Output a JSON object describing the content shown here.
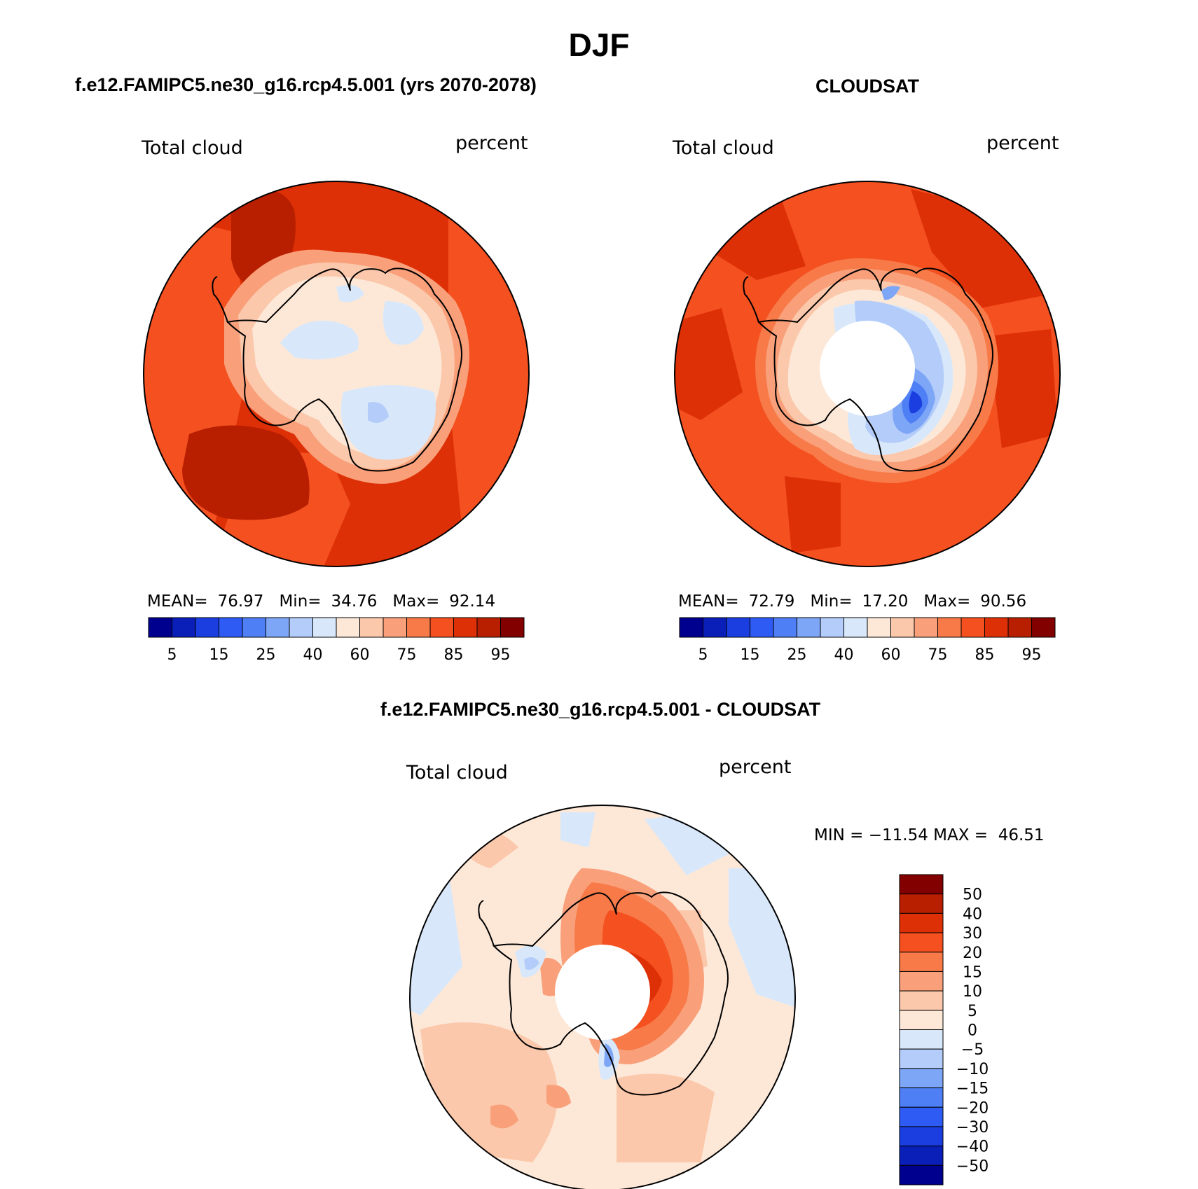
{
  "title": "DJF",
  "panels": [
    {
      "id": "model",
      "title": "f.e12.FAMIPC5.ne30_g16.rcp4.5.001 (yrs 2070-2078)",
      "variable": "Total cloud",
      "units": "percent",
      "stats": {
        "mean_label": "MEAN=",
        "mean": "76.97",
        "min_label": "Min=",
        "min": "34.76",
        "max_label": "Max=",
        "max": "92.14"
      },
      "colorbar_labels": [
        "5",
        "15",
        "25",
        "40",
        "60",
        "75",
        "85",
        "95"
      ]
    },
    {
      "id": "obs",
      "title": "CLOUDSAT",
      "variable": "Total cloud",
      "units": "percent",
      "stats": {
        "mean_label": "MEAN=",
        "mean": "72.79",
        "min_label": "Min=",
        "min": "17.20",
        "max_label": "Max=",
        "max": "90.56"
      },
      "colorbar_labels": [
        "5",
        "15",
        "25",
        "40",
        "60",
        "75",
        "85",
        "95"
      ]
    },
    {
      "id": "diff",
      "title": "f.e12.FAMIPC5.ne30_g16.rcp4.5.001 - CLOUDSAT",
      "variable": "Total cloud",
      "units": "percent",
      "stats_text": "MIN = −11.54 MAX =  46.51",
      "colorbar_labels": [
        "50",
        "40",
        "30",
        "20",
        "15",
        "10",
        "5",
        "0",
        "−5",
        "−10",
        "−15",
        "−20",
        "−30",
        "−40",
        "−50"
      ]
    }
  ],
  "colors": {
    "abs_scale": [
      "#00008f",
      "#0a1fb8",
      "#1a3ee0",
      "#2f5bf5",
      "#4f7ff4",
      "#7ea6f6",
      "#b3ccf9",
      "#d8e8fa",
      "#fde8d8",
      "#fbc8ab",
      "#f9a07b",
      "#f77a48",
      "#f45020",
      "#de3006",
      "#b81f00",
      "#820000"
    ],
    "diff_scale": [
      "#820000",
      "#b81f00",
      "#de3006",
      "#f45020",
      "#f77a48",
      "#f9a07b",
      "#fbc8ab",
      "#fde8d8",
      "#d8e8fa",
      "#b3ccf9",
      "#7ea6f6",
      "#4f7ff4",
      "#2f5bf5",
      "#1a3ee0",
      "#0a1fb8",
      "#00008f"
    ]
  }
}
